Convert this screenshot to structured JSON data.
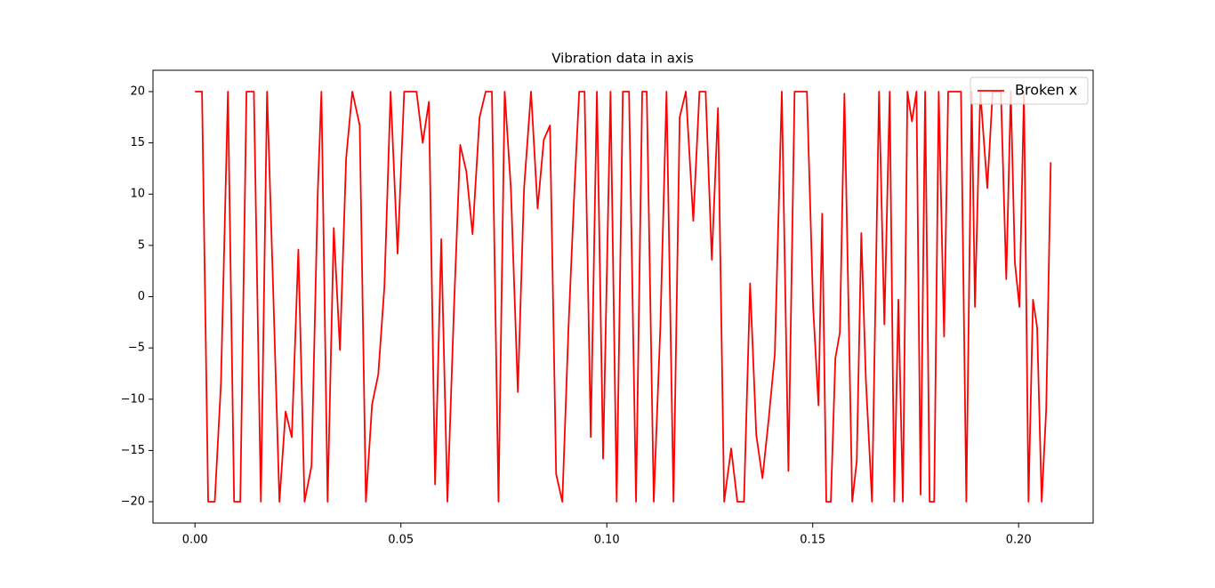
{
  "chart_data": {
    "type": "line",
    "title": "Vibration data in axis",
    "x": [
      0,
      0.0017,
      0.0032,
      0.0048,
      0.0063,
      0.008,
      0.0095,
      0.011,
      0.0125,
      0.0143,
      0.016,
      0.0175,
      0.019,
      0.0205,
      0.022,
      0.0235,
      0.0251,
      0.0266,
      0.0283,
      0.0298,
      0.0307,
      0.0322,
      0.0337,
      0.0352,
      0.0367,
      0.0382,
      0.04,
      0.0415,
      0.043,
      0.0445,
      0.046,
      0.0475,
      0.0492,
      0.0508,
      0.0523,
      0.0538,
      0.0553,
      0.0568,
      0.0583,
      0.0598,
      0.0613,
      0.0629,
      0.0644,
      0.0659,
      0.0674,
      0.0691,
      0.0706,
      0.0721,
      0.0737,
      0.0752,
      0.0767,
      0.0784,
      0.0799,
      0.0816,
      0.0832,
      0.0847,
      0.0862,
      0.0877,
      0.0892,
      0.0907,
      0.0922,
      0.0933,
      0.0946,
      0.0961,
      0.0976,
      0.0991,
      0.1009,
      0.1024,
      0.1039,
      0.1054,
      0.1071,
      0.1086,
      0.1097,
      0.1114,
      0.113,
      0.1145,
      0.1162,
      0.1177,
      0.1192,
      0.121,
      0.1225,
      0.124,
      0.1255,
      0.127,
      0.1285,
      0.1302,
      0.1317,
      0.1333,
      0.1348,
      0.1363,
      0.1378,
      0.1393,
      0.1408,
      0.1425,
      0.1441,
      0.1456,
      0.1471,
      0.1486,
      0.1501,
      0.1514,
      0.1523,
      0.1533,
      0.1544,
      0.1555,
      0.1566,
      0.1577,
      0.1596,
      0.1607,
      0.1618,
      0.1629,
      0.1644,
      0.1661,
      0.1674,
      0.1687,
      0.1698,
      0.1708,
      0.1719,
      0.173,
      0.1741,
      0.1752,
      0.1762,
      0.1773,
      0.1784,
      0.1795,
      0.1806,
      0.1819,
      0.1829,
      0.1842,
      0.186,
      0.1873,
      0.1886,
      0.1894,
      0.1907,
      0.1924,
      0.1937,
      0.1957,
      0.197,
      0.1981,
      0.1991,
      0.2002,
      0.2013,
      0.2024,
      0.2035,
      0.2045,
      0.2056,
      0.2067,
      0.2078
    ],
    "series": [
      {
        "name": "Broken x",
        "color": "#ff0000",
        "values": [
          20,
          20,
          -20,
          -20,
          -8.5,
          20,
          -20,
          -20,
          20,
          20,
          -20,
          20,
          0.5,
          -20,
          -11.2,
          -13.7,
          4.6,
          -20,
          -16.5,
          10,
          20,
          -20,
          6.7,
          -5.2,
          13.5,
          20,
          16.7,
          -20,
          -10.5,
          -7.6,
          1,
          20,
          4.2,
          20,
          20,
          20,
          15,
          19,
          -18.3,
          5.6,
          -20,
          -1,
          14.8,
          12.2,
          6.1,
          17.5,
          20,
          20,
          -20,
          20,
          10.6,
          -9.3,
          10.5,
          20,
          8.6,
          15.3,
          16.7,
          -17.3,
          -20,
          -3,
          11,
          20,
          20,
          -13.7,
          20,
          -15.8,
          20,
          -20,
          20,
          20,
          -20,
          20,
          20,
          -20,
          -3,
          20,
          -20,
          17.5,
          20,
          7.4,
          20,
          20,
          3.6,
          18.4,
          -20,
          -14.8,
          -20,
          -20,
          1.3,
          -13.5,
          -17.7,
          -12,
          -5.6,
          20,
          -17,
          20,
          20,
          20,
          -1,
          -10.6,
          8.1,
          -20,
          -20,
          -6,
          -3.5,
          19.8,
          -20,
          -16,
          6.2,
          -8,
          -20,
          20,
          -2.7,
          20,
          -20,
          -0.3,
          -20,
          20,
          17.1,
          20,
          -19.3,
          20,
          -20,
          -20,
          20,
          -3.9,
          20,
          20,
          20,
          -20,
          20,
          -1,
          20,
          10.6,
          20,
          20,
          1.7,
          20,
          3.3,
          -1,
          20,
          -20,
          -0.3,
          -3,
          -20,
          -11,
          13.1
        ]
      }
    ],
    "xlim": [
      -0.0102,
      0.2181
    ],
    "ylim": [
      -22.08,
      22.08
    ],
    "xticks": [
      {
        "value": 0,
        "label": "0.00"
      },
      {
        "value": 0.05,
        "label": "0.05"
      },
      {
        "value": 0.1,
        "label": "0.10"
      },
      {
        "value": 0.15,
        "label": "0.15"
      },
      {
        "value": 0.2,
        "label": "0.20"
      }
    ],
    "yticks": [
      {
        "value": -20,
        "label": "−20"
      },
      {
        "value": -15,
        "label": "−15"
      },
      {
        "value": -10,
        "label": "−10"
      },
      {
        "value": -5,
        "label": "−5"
      },
      0,
      5,
      10,
      15,
      20
    ],
    "legend": "upper right",
    "grid": false
  }
}
